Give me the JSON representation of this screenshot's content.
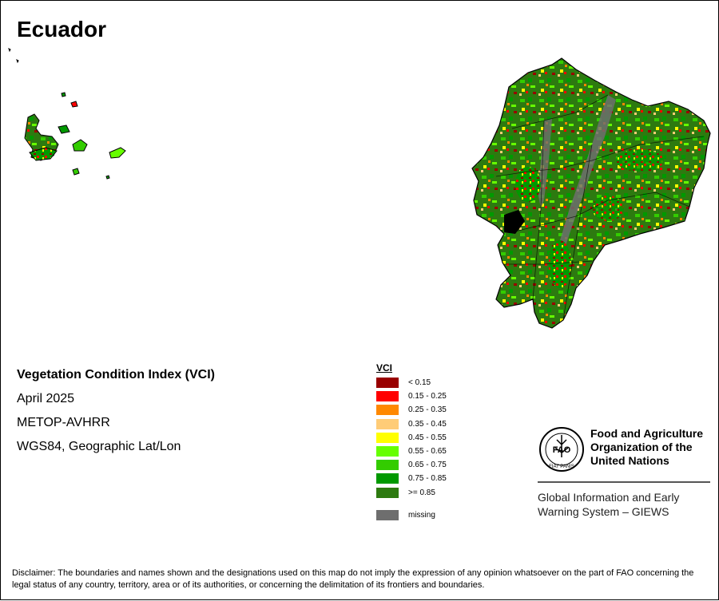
{
  "map_title": "Ecuador",
  "info": {
    "index_name": "Vegetation Condition Index (VCI)",
    "period": "April 2025",
    "sensor": "METOP-AVHRR",
    "projection": "WGS84, Geographic Lat/Lon"
  },
  "legend": {
    "title": "VCI",
    "classes": [
      {
        "label": "< 0.15",
        "color": "#990000"
      },
      {
        "label": "0.15 - 0.25",
        "color": "#ff0000"
      },
      {
        "label": "0.25 - 0.35",
        "color": "#ff8800"
      },
      {
        "label": "0.35 - 0.45",
        "color": "#ffcc77"
      },
      {
        "label": "0.45 - 0.55",
        "color": "#ffff00"
      },
      {
        "label": "0.55 - 0.65",
        "color": "#66ff00"
      },
      {
        "label": "0.65 - 0.75",
        "color": "#33cc00"
      },
      {
        "label": "0.75 - 0.85",
        "color": "#009900"
      },
      {
        "label": ">= 0.85",
        "color": "#2d7a10"
      }
    ],
    "missing": {
      "label": "missing",
      "color": "#6e6e6e"
    }
  },
  "fao": {
    "name_line1": "Food and Agriculture",
    "name_line2": "Organization of the",
    "name_line3": "United Nations",
    "logo_text": "FAO",
    "logo_motto": "FIAT PANIS",
    "giews_line1": "Global Information and Early",
    "giews_line2": "Warning System – GIEWS"
  },
  "disclaimer": "Disclaimer: The boundaries and names shown and the designations used on this map do not imply the expression of any opinion whatsoever on the part of FAO concerning the legal status of any country, territory, area or of its authorities, or concerning the delimitation of its frontiers and boundaries."
}
